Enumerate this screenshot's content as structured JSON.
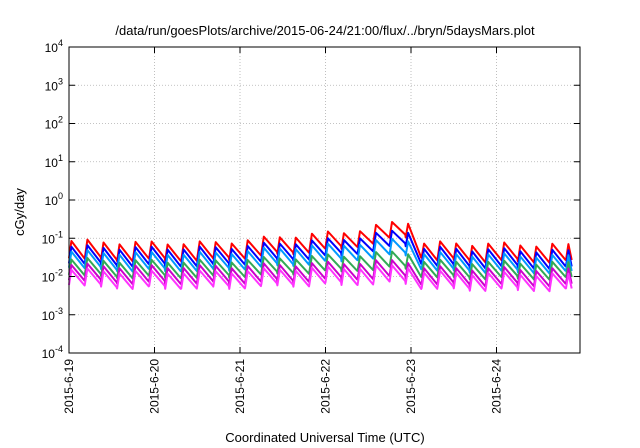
{
  "chart_data": {
    "type": "line",
    "title": "/data/run/goesPlots/archive/2015-06-24/21:00/flux/../bryn/5daysMars.plot",
    "xlabel": "Coordinated Universal Time (UTC)",
    "ylabel": "cGy/day",
    "yscale": "log",
    "ylim": [
      0.0001,
      10000
    ],
    "xlim_days": [
      0,
      5.88
    ],
    "grid": true,
    "y_ticks": [
      {
        "base": "10",
        "exp": "-4",
        "value": 0.0001
      },
      {
        "base": "10",
        "exp": "-3",
        "value": 0.001
      },
      {
        "base": "10",
        "exp": "-2",
        "value": 0.01
      },
      {
        "base": "10",
        "exp": "-1",
        "value": 0.1
      },
      {
        "base": "10",
        "exp": "0",
        "value": 1
      },
      {
        "base": "10",
        "exp": "1",
        "value": 10
      },
      {
        "base": "10",
        "exp": "2",
        "value": 100
      },
      {
        "base": "10",
        "exp": "3",
        "value": 1000
      },
      {
        "base": "10",
        "exp": "4",
        "value": 10000
      }
    ],
    "x_ticks": [
      {
        "label": "2015-6-19",
        "day": 0
      },
      {
        "label": "2015-6-20",
        "day": 1
      },
      {
        "label": "2015-6-21",
        "day": 2
      },
      {
        "label": "2015-6-22",
        "day": 3
      },
      {
        "label": "2015-6-23",
        "day": 4
      },
      {
        "label": "2015-6-24",
        "day": 5
      }
    ],
    "sawtooth_period_days": 0.1875,
    "series": [
      {
        "color": "#ff0000",
        "peaks": [
          0.085,
          0.075,
          0.075,
          0.12,
          0.15,
          0.3,
          0.075,
          0.065
        ],
        "troughs": [
          0.03,
          0.028,
          0.028,
          0.045,
          0.06,
          0.12,
          0.028,
          0.025
        ]
      },
      {
        "color": "#0000ff",
        "peaks": [
          0.06,
          0.055,
          0.055,
          0.08,
          0.1,
          0.17,
          0.055,
          0.045
        ],
        "troughs": [
          0.022,
          0.02,
          0.02,
          0.03,
          0.04,
          0.07,
          0.02,
          0.017
        ]
      },
      {
        "color": "#0099ff",
        "peaks": [
          0.045,
          0.04,
          0.04,
          0.06,
          0.07,
          0.1,
          0.04,
          0.033
        ],
        "troughs": [
          0.017,
          0.015,
          0.015,
          0.022,
          0.028,
          0.04,
          0.015,
          0.013
        ]
      },
      {
        "color": "#33aa55",
        "peaks": [
          0.028,
          0.025,
          0.025,
          0.032,
          0.036,
          0.045,
          0.025,
          0.022
        ],
        "troughs": [
          0.011,
          0.01,
          0.01,
          0.013,
          0.015,
          0.018,
          0.01,
          0.009
        ]
      },
      {
        "color": "#cc00cc",
        "peaks": [
          0.02,
          0.018,
          0.018,
          0.021,
          0.023,
          0.026,
          0.017,
          0.015
        ],
        "troughs": [
          0.008,
          0.007,
          0.007,
          0.008,
          0.009,
          0.01,
          0.0065,
          0.006
        ]
      },
      {
        "color": "#ff33ff",
        "peaks": [
          0.015,
          0.013,
          0.013,
          0.016,
          0.017,
          0.019,
          0.013,
          0.011
        ],
        "troughs": [
          0.006,
          0.0052,
          0.0052,
          0.0062,
          0.0065,
          0.0072,
          0.005,
          0.0045
        ]
      }
    ],
    "profile_days": [
      0,
      0.85,
      1.7,
      2.7,
      3.3,
      3.95,
      4.15,
      5.88
    ]
  }
}
